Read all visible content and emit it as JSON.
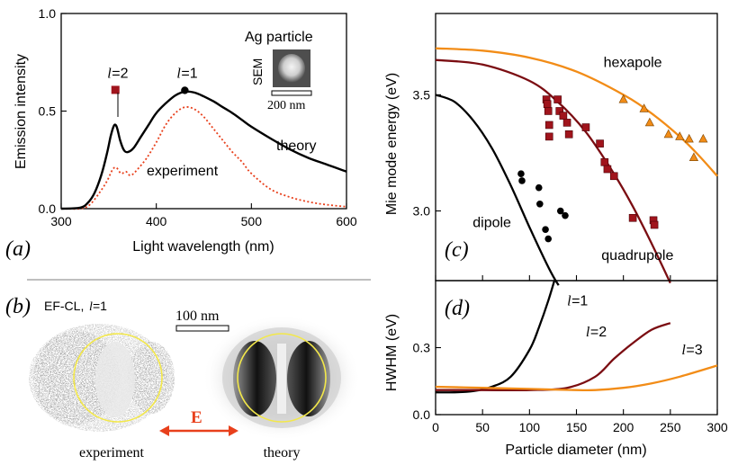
{
  "colors": {
    "theory": "#000000",
    "experiment": "#e8401c",
    "dipole": "#000000",
    "quadrupole": "#7b0d12",
    "hexapole": "#f28c17",
    "square_marker": "#a0141c",
    "triangle_marker": "#f28c17",
    "circle_yellow": "#f3e84a",
    "arrow": "#e8401c"
  },
  "chart_data": [
    {
      "panel": "(a)",
      "type": "line",
      "xlabel": "Light wavelength (nm)",
      "ylabel": "Emission intensity",
      "xlim": [
        300,
        600
      ],
      "ylim": [
        0,
        1.0
      ],
      "xticks": [
        300,
        400,
        500,
        600
      ],
      "yticks": [
        {
          "v": 0,
          "label": "0.0"
        },
        {
          "v": 0.5,
          "label": "0.5"
        },
        {
          "v": 1.0,
          "label": "1.0"
        }
      ],
      "inset_title": "Ag particle",
      "inset_sem_label": "SEM",
      "inset_scale": "200 nm",
      "mode_labels": [
        {
          "l": "l",
          "eq": "=2",
          "x": 357,
          "y": 0.68,
          "marker": "square"
        },
        {
          "l": "l",
          "eq": "=1",
          "x": 430,
          "y": 0.68,
          "marker": "circle"
        }
      ],
      "series": [
        {
          "name": "theory",
          "style": "solid",
          "x": [
            300,
            320,
            328,
            335,
            342,
            348,
            352,
            355,
            357,
            359,
            362,
            366,
            370,
            376,
            384,
            392,
            400,
            410,
            420,
            430,
            440,
            450,
            460,
            470,
            480,
            490,
            500,
            520,
            540,
            560,
            580,
            600
          ],
          "y": [
            0.0,
            0.005,
            0.03,
            0.08,
            0.17,
            0.28,
            0.37,
            0.42,
            0.43,
            0.41,
            0.35,
            0.3,
            0.29,
            0.31,
            0.37,
            0.43,
            0.49,
            0.54,
            0.58,
            0.6,
            0.595,
            0.575,
            0.55,
            0.52,
            0.49,
            0.455,
            0.42,
            0.36,
            0.305,
            0.26,
            0.225,
            0.19
          ]
        },
        {
          "name": "experiment",
          "style": "dotted",
          "x": [
            300,
            320,
            330,
            340,
            348,
            354,
            358,
            363,
            368,
            373,
            380,
            390,
            400,
            410,
            420,
            430,
            440,
            450,
            460,
            470,
            480,
            490,
            500,
            520,
            540,
            560,
            580,
            600
          ],
          "y": [
            0.0,
            0.0,
            0.02,
            0.08,
            0.14,
            0.2,
            0.21,
            0.18,
            0.19,
            0.17,
            0.2,
            0.26,
            0.34,
            0.43,
            0.49,
            0.52,
            0.51,
            0.47,
            0.41,
            0.35,
            0.29,
            0.24,
            0.18,
            0.1,
            0.06,
            0.035,
            0.02,
            0.01
          ]
        }
      ]
    },
    {
      "panel": "(c)",
      "type": "scatter",
      "xlabel": "",
      "ylabel": "Mie mode energy (eV)",
      "xlim": [
        0,
        300
      ],
      "ylim": [
        2.7,
        3.85
      ],
      "yticks": [
        {
          "v": 3.0,
          "label": "3.0"
        },
        {
          "v": 3.5,
          "label": "3.5"
        }
      ],
      "series": [
        {
          "name": "dipole",
          "kind": "curve",
          "x": [
            0,
            20,
            40,
            60,
            80,
            100,
            115,
            125,
            131
          ],
          "y": [
            3.5,
            3.47,
            3.39,
            3.27,
            3.11,
            2.93,
            2.8,
            2.72,
            2.68
          ]
        },
        {
          "name": "quadrupole",
          "kind": "curve",
          "x": [
            0,
            50,
            100,
            130,
            160,
            190,
            210,
            230,
            250
          ],
          "y": [
            3.65,
            3.63,
            3.56,
            3.47,
            3.34,
            3.16,
            3.02,
            2.86,
            2.69
          ]
        },
        {
          "name": "hexapole",
          "kind": "curve",
          "x": [
            0,
            50,
            100,
            150,
            200,
            230,
            260,
            280,
            300
          ],
          "y": [
            3.7,
            3.69,
            3.66,
            3.6,
            3.5,
            3.42,
            3.32,
            3.24,
            3.15
          ]
        },
        {
          "name": "dipole",
          "kind": "points",
          "marker": "circle",
          "x": [
            91,
            92,
            110,
            111,
            117,
            120,
            133,
            138
          ],
          "y": [
            3.16,
            3.13,
            3.1,
            3.03,
            2.92,
            2.88,
            3.0,
            2.98
          ]
        },
        {
          "name": "quadrupole",
          "kind": "points",
          "marker": "square",
          "x": [
            118,
            119,
            120,
            121,
            121,
            130,
            132,
            136,
            140,
            142,
            160,
            175,
            180,
            183,
            190,
            210,
            232,
            233
          ],
          "y": [
            3.48,
            3.46,
            3.43,
            3.37,
            3.32,
            3.48,
            3.43,
            3.41,
            3.38,
            3.33,
            3.36,
            3.29,
            3.21,
            3.18,
            3.15,
            2.97,
            2.96,
            2.94
          ]
        },
        {
          "name": "hexapole",
          "kind": "points",
          "marker": "triangle",
          "x": [
            200,
            222,
            228,
            248,
            260,
            270,
            275,
            285
          ],
          "y": [
            3.48,
            3.44,
            3.38,
            3.33,
            3.32,
            3.31,
            3.23,
            3.31
          ]
        }
      ],
      "labels": [
        {
          "text": "hexapole",
          "x": 210,
          "y": 3.62
        },
        {
          "text": "dipole",
          "x": 60,
          "y": 2.93
        },
        {
          "text": "quadrupole",
          "x": 215,
          "y": 2.79
        }
      ]
    },
    {
      "panel": "(d)",
      "type": "line",
      "xlabel": "Particle diameter (nm)",
      "ylabel": "HWHM (eV)",
      "xlim": [
        0,
        300
      ],
      "ylim": [
        0,
        0.6
      ],
      "xticks": [
        0,
        50,
        100,
        150,
        200,
        250,
        300
      ],
      "yticks": [
        {
          "v": 0,
          "label": "0.0"
        },
        {
          "v": 0.3,
          "label": "0.3"
        }
      ],
      "series": [
        {
          "name": "l=1",
          "x": [
            0,
            20,
            40,
            60,
            80,
            100,
            110,
            120,
            130
          ],
          "y": [
            0.1,
            0.1,
            0.105,
            0.125,
            0.17,
            0.29,
            0.39,
            0.51,
            0.65
          ]
        },
        {
          "name": "l=2",
          "x": [
            0,
            50,
            100,
            140,
            170,
            190,
            210,
            230,
            250
          ],
          "y": [
            0.11,
            0.11,
            0.11,
            0.12,
            0.17,
            0.25,
            0.32,
            0.38,
            0.41
          ]
        },
        {
          "name": "l=3",
          "x": [
            0,
            50,
            100,
            150,
            170,
            200,
            230,
            260,
            300
          ],
          "y": [
            0.125,
            0.12,
            0.115,
            0.11,
            0.11,
            0.12,
            0.14,
            0.17,
            0.22
          ]
        }
      ],
      "labels": [
        {
          "l": "l",
          "eq": "=1",
          "x": 140,
          "y": 0.49
        },
        {
          "l": "l",
          "eq": "=2",
          "x": 160,
          "y": 0.35
        },
        {
          "l": "l",
          "eq": "=3",
          "x": 262,
          "y": 0.27
        }
      ]
    }
  ],
  "panel_b": {
    "panel": "(b)",
    "title": "EF-CL,",
    "mode_l": "l",
    "mode_eq": "=1",
    "scale": "100 nm",
    "field_label": "E",
    "experiment_caption": "experiment",
    "theory_caption": "theory"
  },
  "annotations": {
    "theory_label": "theory",
    "experiment_label": "experiment"
  }
}
